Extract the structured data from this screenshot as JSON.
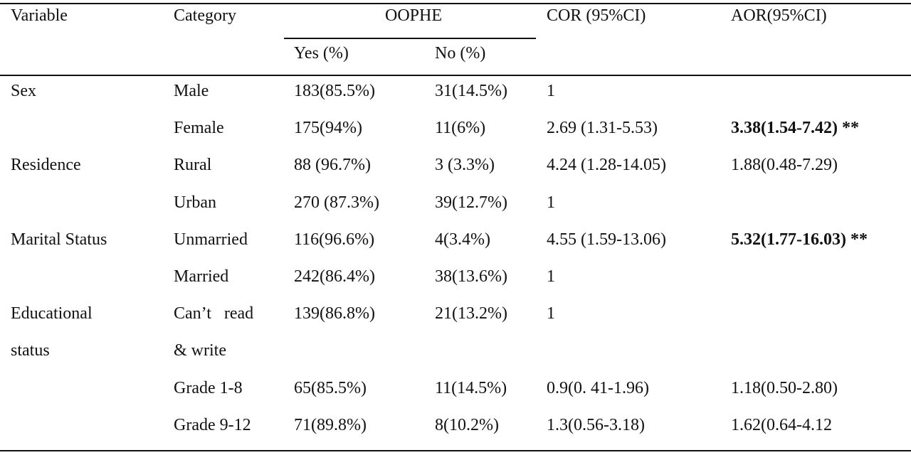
{
  "headers": {
    "variable": "Variable",
    "category": "Category",
    "oophe": "OOPHE",
    "yes": "Yes (%)",
    "no": "No (%)",
    "cor": "COR (95%CI)",
    "aor": "AOR(95%CI)"
  },
  "rows": [
    {
      "variable": "Sex",
      "category": "Male",
      "yes": "183(85.5%)",
      "no": "31(14.5%)",
      "cor": "1",
      "aor": ""
    },
    {
      "variable": "",
      "category": "Female",
      "yes": "175(94%)",
      "no": "11(6%)",
      "cor": "2.69 (1.31-5.53)",
      "aor": "3.38(1.54-7.42) **"
    },
    {
      "variable": "Residence",
      "category": "Rural",
      "yes": "88 (96.7%)",
      "no": "3 (3.3%)",
      "cor": "4.24 (1.28-14.05)",
      "aor": "1.88(0.48-7.29)"
    },
    {
      "variable": "",
      "category": "Urban",
      "yes": "270 (87.3%)",
      "no": "39(12.7%)",
      "cor": "1",
      "aor": ""
    },
    {
      "variable": "Marital Status",
      "category": "Unmarried",
      "yes": "116(96.6%)",
      "no": "4(3.4%)",
      "cor": "4.55 (1.59-13.06)",
      "aor": "5.32(1.77-16.03) **"
    },
    {
      "variable": "",
      "category": "Married",
      "yes": "242(86.4%)",
      "no": "38(13.6%)",
      "cor": "1",
      "aor": ""
    },
    {
      "variable": "Educational",
      "category": "Can’t read",
      "yes": "139(86.8%)",
      "no": "21(13.2%)",
      "cor": "1",
      "aor": ""
    },
    {
      "variable": "status",
      "category": "& write",
      "yes": "",
      "no": "",
      "cor": "",
      "aor": ""
    },
    {
      "variable": "",
      "category": "Grade 1-8",
      "yes": "65(85.5%)",
      "no": "11(14.5%)",
      "cor": "0.9(0. 41-1.96)",
      "aor": "1.18(0.50-2.80)"
    },
    {
      "variable": "",
      "category": "Grade 9-12",
      "yes": "71(89.8%)",
      "no": "8(10.2%)",
      "cor": "1.3(0.56-3.18)",
      "aor": "1.62(0.64-4.12"
    }
  ]
}
